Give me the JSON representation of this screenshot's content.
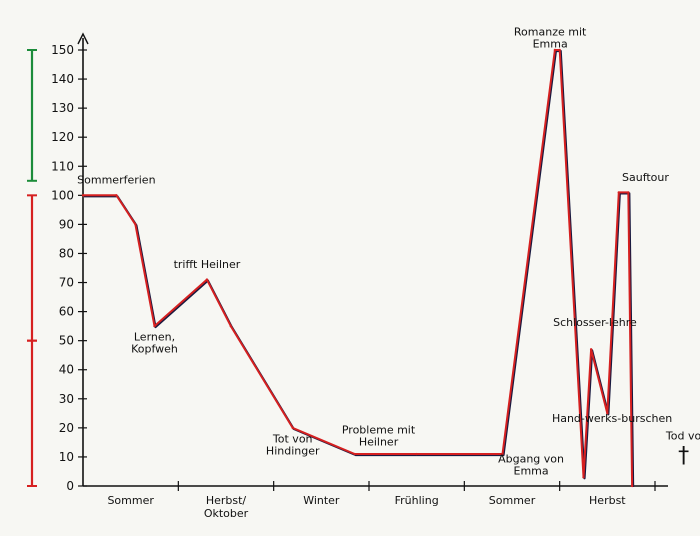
{
  "chart_data": {
    "type": "line",
    "title": "",
    "xlabel": "",
    "ylabel": "",
    "ylim": [
      0,
      150
    ],
    "y_ticks": [
      0,
      10,
      20,
      30,
      40,
      50,
      60,
      70,
      80,
      90,
      100,
      110,
      120,
      130,
      140,
      150
    ],
    "categories": [
      "Sommer",
      "Herbst/Oktober",
      "Winter",
      "Frühling",
      "Sommer",
      "Herbst"
    ],
    "x_range": [
      0,
      6
    ],
    "series": [
      {
        "name": "",
        "color": "#d62020",
        "points": [
          {
            "x": 0.0,
            "y": 100
          },
          {
            "x": 0.35,
            "y": 100
          },
          {
            "x": 0.55,
            "y": 90
          },
          {
            "x": 0.75,
            "y": 55
          },
          {
            "x": 1.3,
            "y": 71
          },
          {
            "x": 1.55,
            "y": 55
          },
          {
            "x": 2.2,
            "y": 20
          },
          {
            "x": 2.85,
            "y": 11
          },
          {
            "x": 3.5,
            "y": 11
          },
          {
            "x": 4.4,
            "y": 11
          },
          {
            "x": 4.95,
            "y": 150
          },
          {
            "x": 5.0,
            "y": 150
          },
          {
            "x": 5.25,
            "y": 3
          },
          {
            "x": 5.33,
            "y": 47
          },
          {
            "x": 5.5,
            "y": 25
          },
          {
            "x": 5.62,
            "y": 101
          },
          {
            "x": 5.72,
            "y": 101
          },
          {
            "x": 5.76,
            "y": 0
          }
        ]
      }
    ],
    "annotations": [
      {
        "text": "Sommerferien",
        "x": 0.35,
        "y": 104
      },
      {
        "text": "Lernen, Kopfweh",
        "x": 0.75,
        "y": 50
      },
      {
        "text": "trifft Heilner",
        "x": 1.3,
        "y": 75
      },
      {
        "text": "Tot von Hindinger",
        "x": 2.2,
        "y": 15
      },
      {
        "text": "Probleme mit Heilner",
        "x": 3.1,
        "y": 18
      },
      {
        "text": "Romanze mit Emma",
        "x": 4.9,
        "y": 155
      },
      {
        "text": "Abgang von Emma",
        "x": 4.7,
        "y": 8
      },
      {
        "text": "Schlosser-lehre",
        "x": 5.37,
        "y": 55
      },
      {
        "text": "Hand-werks-burschen",
        "x": 5.55,
        "y": 22
      },
      {
        "text": "Sauftour",
        "x": 5.9,
        "y": 105
      },
      {
        "text": "Tod von Hans",
        "x": 6.5,
        "y": 16
      },
      {
        "text": "†",
        "x": 6.3,
        "y": 8
      }
    ],
    "side_brackets": [
      {
        "from": 105,
        "to": 150,
        "color": "#1c8c3a"
      },
      {
        "from": 50,
        "to": 100,
        "color": "#d62020"
      },
      {
        "from": 0,
        "to": 50,
        "color": "#d62020"
      }
    ],
    "grid": false,
    "legend": "none"
  }
}
